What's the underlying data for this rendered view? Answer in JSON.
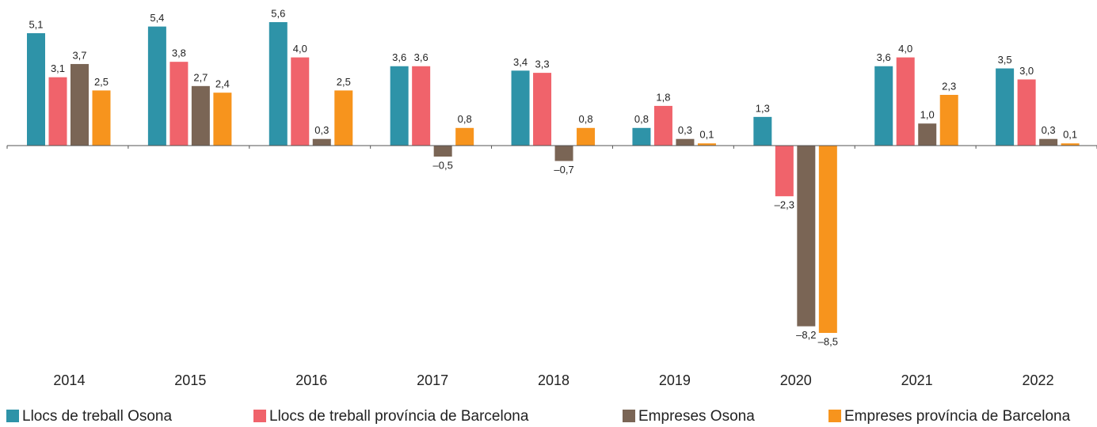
{
  "chart_data": {
    "type": "bar",
    "categories": [
      "2014",
      "2015",
      "2016",
      "2017",
      "2018",
      "2019",
      "2020",
      "2021",
      "2022"
    ],
    "series": [
      {
        "name": "Llocs de treball Osona",
        "color": "#2e93a8",
        "values": [
          5.1,
          5.4,
          5.6,
          3.6,
          3.4,
          0.8,
          1.3,
          3.6,
          3.5
        ],
        "value_labels": [
          "5,1",
          "5,4",
          "5,6",
          "3,6",
          "3,4",
          "0,8",
          "1,3",
          "3,6",
          "3,5"
        ]
      },
      {
        "name": "Llocs de treball província de Barcelona",
        "color": "#f0636b",
        "values": [
          3.1,
          3.8,
          4.0,
          3.6,
          3.3,
          1.8,
          -2.3,
          4.0,
          3.0
        ],
        "value_labels": [
          "3,1",
          "3,8",
          "4,0",
          "3,6",
          "3,3",
          "1,8",
          "–2,3",
          "4,0",
          "3,0"
        ]
      },
      {
        "name": "Empreses Osona",
        "color": "#7a6555",
        "values": [
          3.7,
          2.7,
          0.3,
          -0.5,
          -0.7,
          0.3,
          -8.2,
          1.0,
          0.3
        ],
        "value_labels": [
          "3,7",
          "2,7",
          "0,3",
          "–0,5",
          "–0,7",
          "0,3",
          "–8,2",
          "1,0",
          "0,3"
        ]
      },
      {
        "name": "Empreses província de Barcelona",
        "color": "#f7941d",
        "values": [
          2.5,
          2.4,
          2.5,
          0.8,
          0.8,
          0.1,
          -8.5,
          2.3,
          0.1
        ],
        "value_labels": [
          "2,5",
          "2,4",
          "2,5",
          "0,8",
          "0,8",
          "0,1",
          "–8,5",
          "2,3",
          "0,1"
        ]
      }
    ]
  }
}
